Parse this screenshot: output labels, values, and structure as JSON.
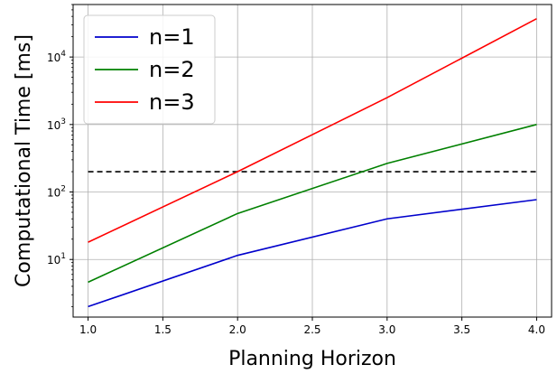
{
  "chart_data": {
    "type": "line",
    "xlabel": "Planning Horizon",
    "ylabel": "Computational Time [ms]",
    "xlim": [
      0.9,
      4.1
    ],
    "ylim": [
      1.4,
      60000
    ],
    "yscale": "log",
    "grid": true,
    "legend_position": "top-left",
    "x_ticks": [
      "1.0",
      "1.5",
      "2.0",
      "2.5",
      "3.0",
      "3.5",
      "4.0"
    ],
    "y_ticks": [
      {
        "base": "10",
        "exp": "1",
        "value": 10
      },
      {
        "base": "10",
        "exp": "2",
        "value": 100
      },
      {
        "base": "10",
        "exp": "3",
        "value": 1000
      },
      {
        "base": "10",
        "exp": "4",
        "value": 10000
      }
    ],
    "x": [
      1.0,
      2.0,
      3.0,
      4.0
    ],
    "series": [
      {
        "name": "n=1",
        "color": "#0000cc",
        "values": [
          2.0,
          11.5,
          40,
          77
        ]
      },
      {
        "name": "n=2",
        "color": "#008000",
        "values": [
          4.6,
          48,
          265,
          1000
        ]
      },
      {
        "name": "n=3",
        "color": "#ff0000",
        "values": [
          18,
          200,
          2500,
          37000
        ]
      }
    ],
    "reference_line": {
      "value": 200,
      "x": [
        1.0,
        4.0
      ],
      "color": "#000000",
      "style": "dashed"
    }
  }
}
